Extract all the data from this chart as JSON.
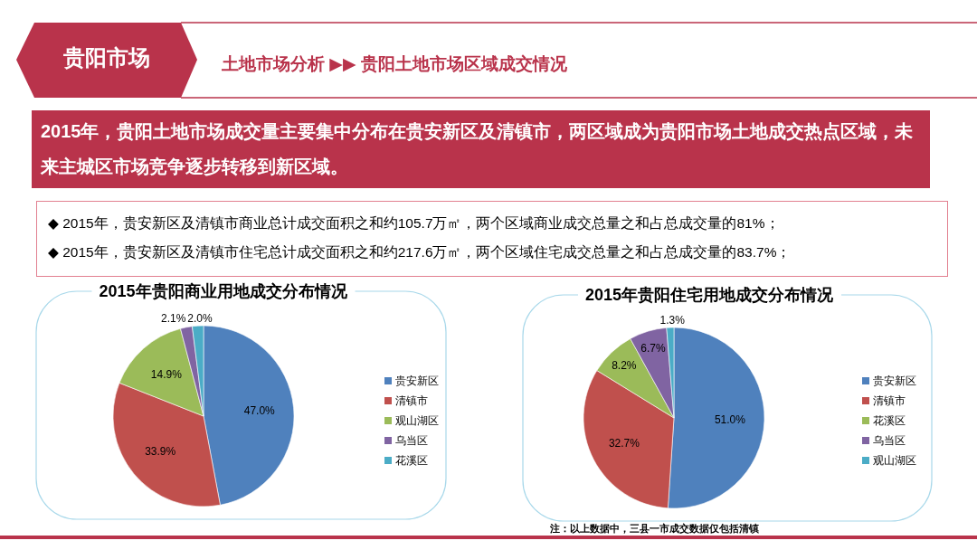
{
  "chart_data": [
    {
      "type": "other",
      "title": "贵阳市场",
      "subtitle": "土地市场分析 ▶▶ 贵阳土地市场区域成交情况",
      "annotations": [
        "2015年，贵阳土地市场成交量主要集中分布在贵安新区及清镇市，两区域成为贵阳市场土地成交热点区域，未来主城区市场竞争逐步转移到新区域。",
        "◆ 2015年，贵安新区及清镇市商业总计成交面积之和约105.7万㎡，两个区域商业成交总量之和占总成交量的81%；",
        "◆ 2015年，贵安新区及清镇市住宅总计成交面积之和约217.6万㎡，两个区域住宅成交总量之和占总成交量的83.7%；"
      ]
    },
    {
      "type": "pie",
      "title": "2015年贵阳商业用地成交分布情况",
      "categories": [
        "贵安新区",
        "清镇市",
        "观山湖区",
        "乌当区",
        "花溪区"
      ],
      "values": [
        47.0,
        33.9,
        14.9,
        2.1,
        2.0
      ],
      "value_labels": [
        "47.0%",
        "33.9%",
        "14.9%",
        "2.1%",
        "2.0%"
      ],
      "colors": [
        "#4f81bd",
        "#c0504d",
        "#9bbb59",
        "#8064a2",
        "#4bacc6"
      ],
      "legend": "right"
    },
    {
      "type": "pie",
      "title": "2015年贵阳住宅用地成交分布情况",
      "categories": [
        "贵安新区",
        "清镇市",
        "花溪区",
        "乌当区",
        "观山湖区"
      ],
      "values": [
        51.0,
        32.7,
        8.2,
        6.7,
        1.3
      ],
      "value_labels": [
        "51.0%",
        "32.7%",
        "8.2%",
        "6.7%",
        "1.3%"
      ],
      "colors": [
        "#4f81bd",
        "#c0504d",
        "#9bbb59",
        "#8064a2",
        "#4bacc6"
      ],
      "legend": "right",
      "annotations": [
        "注：以上数据中，三县一市成交数据仅包括清镇"
      ]
    }
  ]
}
